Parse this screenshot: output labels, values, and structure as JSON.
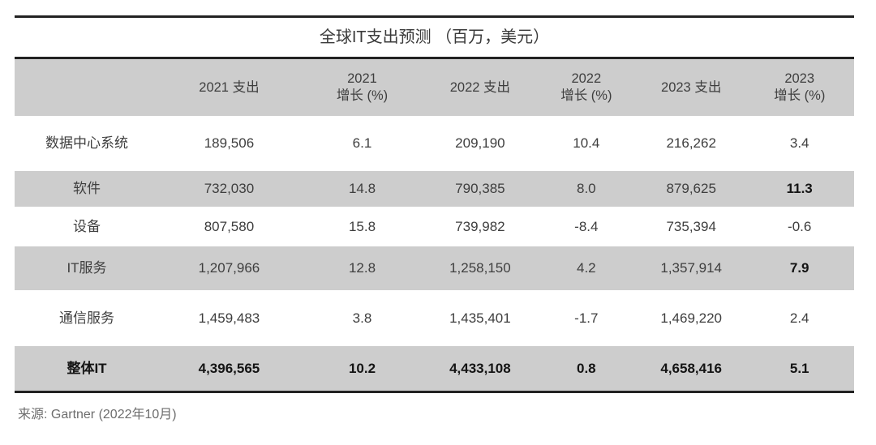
{
  "title": "全球IT支出预测 （百万，美元）",
  "source_note": "来源: Gartner (2022年10月)",
  "colors": {
    "row_shade": "#cdcdcd",
    "rule": "#222222",
    "text": "#3e3e3e",
    "emphasis_text": "#141414",
    "source_text": "#6d6d6d"
  },
  "chart_data": {
    "type": "table",
    "title": "全球IT支出预测 （百万，美元）",
    "unit": "百万美元",
    "columns": [
      "",
      "2021 支出",
      "2021\n增长 (%)",
      "2022 支出",
      "2022\n增长 (%)",
      "2023 支出",
      "2023\n增长 (%)"
    ],
    "rows": [
      {
        "name": "数据中心系统",
        "values": [
          "189,506",
          "6.1",
          "209,190",
          "10.4",
          "216,262",
          "3.4"
        ]
      },
      {
        "name": "软件",
        "values": [
          "732,030",
          "14.8",
          "790,385",
          "8.0",
          "879,625",
          "11.3"
        ]
      },
      {
        "name": "设备",
        "values": [
          "807,580",
          "15.8",
          "739,982",
          "-8.4",
          "735,394",
          "-0.6"
        ]
      },
      {
        "name": "IT服务",
        "values": [
          "1,207,966",
          "12.8",
          "1,258,150",
          "4.2",
          "1,357,914",
          "7.9"
        ]
      },
      {
        "name": "通信服务",
        "values": [
          "1,459,483",
          "3.8",
          "1,435,401",
          "-1.7",
          "1,469,220",
          "2.4"
        ]
      },
      {
        "name": "整体IT",
        "values": [
          "4,396,565",
          "10.2",
          "4,433,108",
          "0.8",
          "4,658,416",
          "5.1"
        ]
      }
    ],
    "legend": null,
    "notes": "软件与IT服务的2023年增长率加粗显示；整体IT行整行加粗"
  }
}
